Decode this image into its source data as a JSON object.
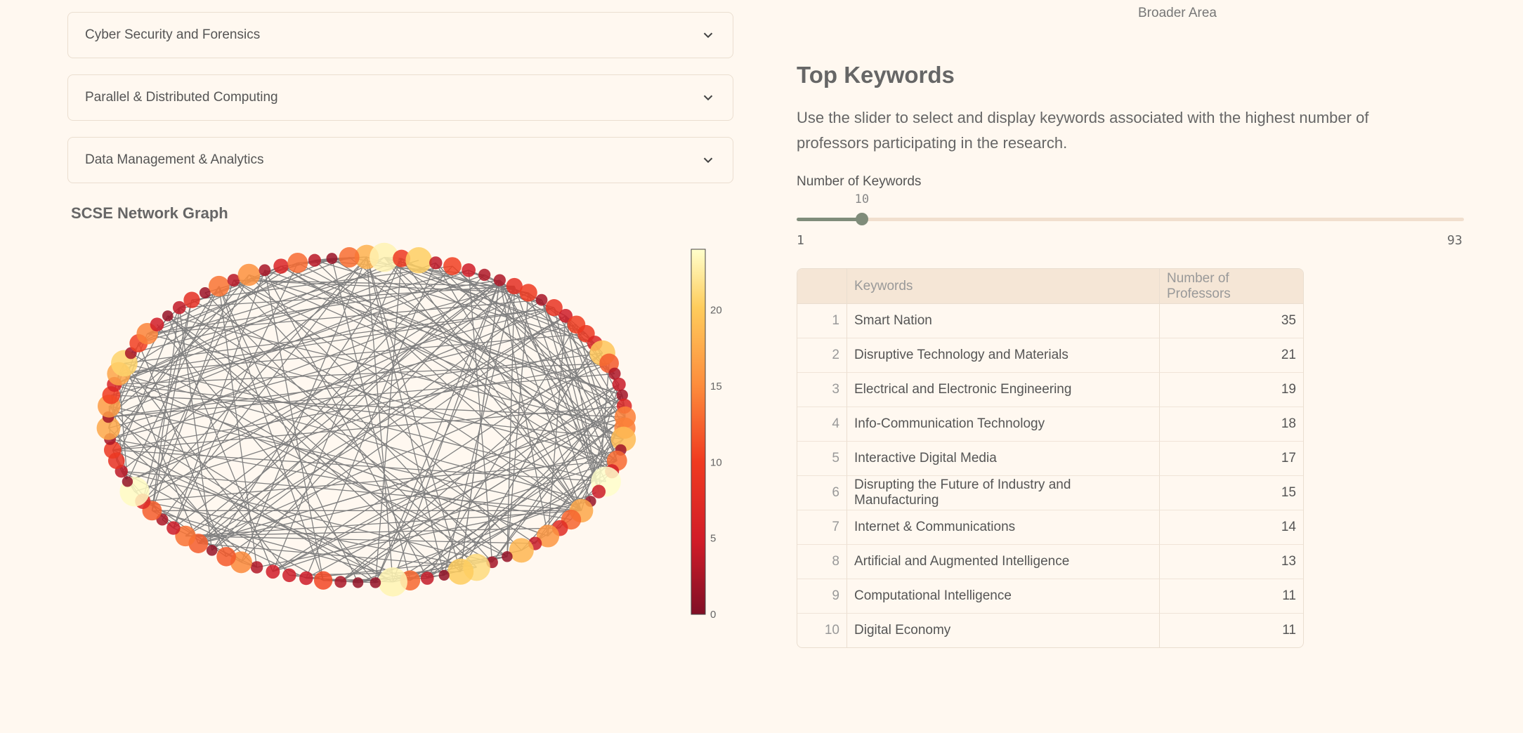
{
  "expanders": [
    {
      "label": "Cyber Security and Forensics"
    },
    {
      "label": "Parallel & Distributed Computing"
    },
    {
      "label": "Data Management & Analytics"
    }
  ],
  "network": {
    "title": "SCSE Network Graph",
    "colorbar_ticks": [
      "0",
      "5",
      "10",
      "15",
      "20"
    ],
    "colorscale": [
      "#800f26",
      "#d11c28",
      "#f03b20",
      "#fd8d3c",
      "#fecc5c",
      "#ffffcc"
    ],
    "edge_color": "#808080"
  },
  "broader_area_label": "Broader Area",
  "top_keywords": {
    "title": "Top Keywords",
    "description": "Use the slider to select and display keywords associated with the highest number of professors participating in the research.",
    "slider": {
      "label": "Number of Keywords",
      "value": 10,
      "min": 1,
      "max": 93,
      "accent": "#7f8c7a"
    },
    "table": {
      "headers": [
        "",
        "Keywords",
        "Number of Professors"
      ],
      "rows": [
        {
          "idx": "1",
          "keyword": "Smart Nation",
          "count": "35"
        },
        {
          "idx": "2",
          "keyword": "Disruptive Technology and Materials",
          "count": "21"
        },
        {
          "idx": "3",
          "keyword": "Electrical and Electronic Engineering",
          "count": "19"
        },
        {
          "idx": "4",
          "keyword": "Info-Communication Technology",
          "count": "18"
        },
        {
          "idx": "5",
          "keyword": "Interactive Digital Media",
          "count": "17"
        },
        {
          "idx": "6",
          "keyword": "Disrupting the Future of Industry and Manufacturing",
          "count": "15"
        },
        {
          "idx": "7",
          "keyword": "Internet & Communications",
          "count": "14"
        },
        {
          "idx": "8",
          "keyword": "Artificial and Augmented Intelligence",
          "count": "13"
        },
        {
          "idx": "9",
          "keyword": "Computational Intelligence",
          "count": "11"
        },
        {
          "idx": "10",
          "keyword": "Digital Economy",
          "count": "11"
        }
      ]
    }
  }
}
